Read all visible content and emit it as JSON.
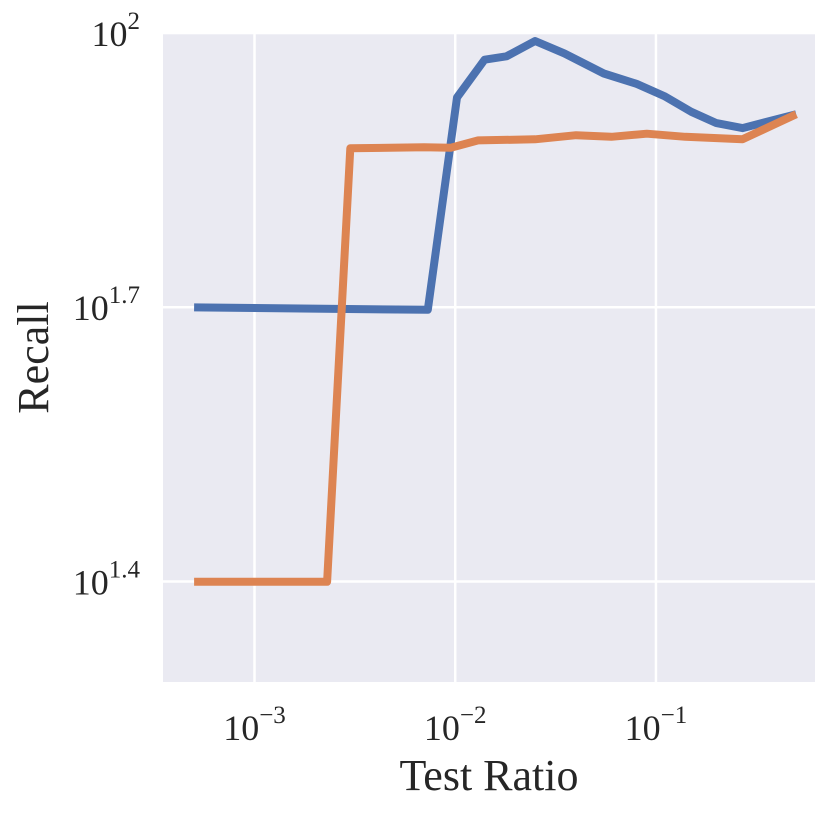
{
  "chart_data": {
    "type": "line",
    "xscale": "log",
    "yscale": "log",
    "xlabel": "Test Ratio",
    "ylabel": "Recall",
    "xlim": [
      0.00035,
      0.62
    ],
    "ylim": [
      19.5,
      100.0
    ],
    "grid": true,
    "legend": "none",
    "x_ticks": [
      {
        "value": 0.001,
        "base": "10",
        "exp": "−3"
      },
      {
        "value": 0.01,
        "base": "10",
        "exp": "−2"
      },
      {
        "value": 0.1,
        "base": "10",
        "exp": "−1"
      }
    ],
    "y_ticks": [
      {
        "value": 25.12,
        "base": "10",
        "exp": "1.4"
      },
      {
        "value": 50.12,
        "base": "10",
        "exp": "1.7"
      },
      {
        "value": 100.0,
        "base": "10",
        "exp": "2"
      }
    ],
    "series": [
      {
        "color": "#4c72b0",
        "points": [
          [
            0.0005,
            50.1
          ],
          [
            0.0073,
            49.8
          ],
          [
            0.0102,
            85.0
          ],
          [
            0.014,
            93.5
          ],
          [
            0.018,
            94.3
          ],
          [
            0.025,
            98.0
          ],
          [
            0.035,
            95.0
          ],
          [
            0.055,
            90.3
          ],
          [
            0.08,
            88.0
          ],
          [
            0.11,
            85.3
          ],
          [
            0.15,
            82.0
          ],
          [
            0.2,
            79.7
          ],
          [
            0.27,
            78.7
          ],
          [
            0.5,
            81.5
          ]
        ]
      },
      {
        "color": "#dd8452",
        "points": [
          [
            0.0005,
            25.1
          ],
          [
            0.0023,
            25.1
          ],
          [
            0.003,
            74.8
          ],
          [
            0.007,
            75.0
          ],
          [
            0.0095,
            74.9
          ],
          [
            0.013,
            76.3
          ],
          [
            0.025,
            76.5
          ],
          [
            0.04,
            77.3
          ],
          [
            0.06,
            77.0
          ],
          [
            0.09,
            77.6
          ],
          [
            0.14,
            77.0
          ],
          [
            0.27,
            76.5
          ],
          [
            0.5,
            81.5
          ]
        ]
      }
    ]
  }
}
